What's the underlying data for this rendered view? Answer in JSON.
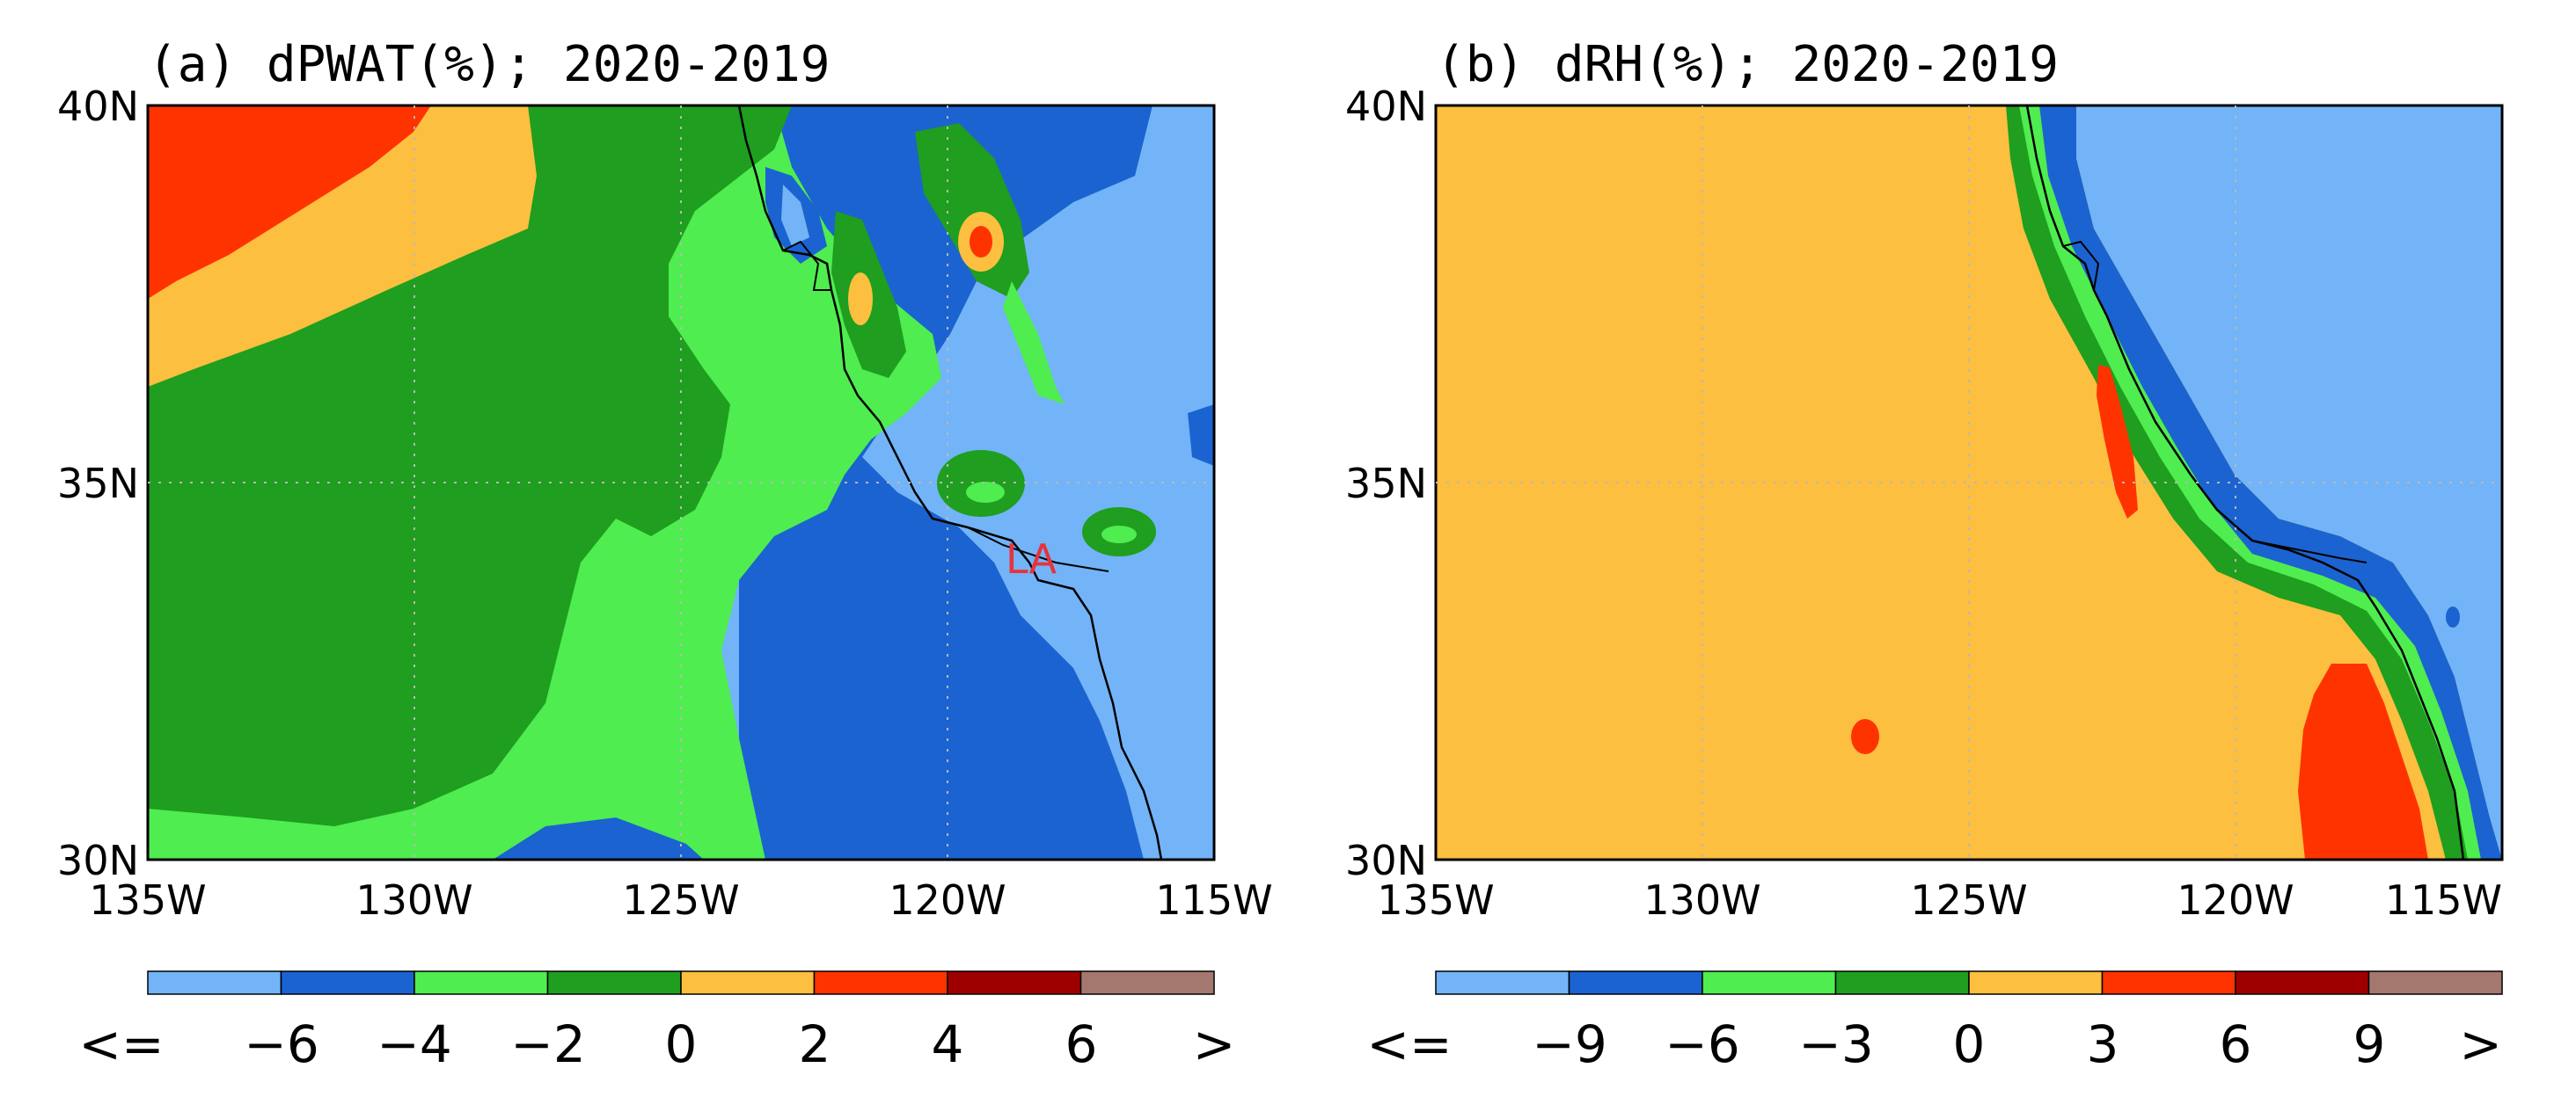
{
  "colors": {
    "lightblue": "#72b4f7",
    "blue": "#1b63d0",
    "lightgreen": "#4fed4f",
    "green": "#1f9e1f",
    "orange": "#fcbf3f",
    "red": "#ff3300",
    "darkred": "#9e0000",
    "brown": "#a5786f",
    "label_red": "#e8323c"
  },
  "panels": [
    {
      "title": "(a) dPWAT(%); 2020-2019",
      "xticks": [
        "135W",
        "130W",
        "125W",
        "120W",
        "115W"
      ],
      "yticks": [
        "30N",
        "35N",
        "40N"
      ],
      "city_label": "LA",
      "colorbar_colors": [
        "lightblue",
        "blue",
        "lightgreen",
        "green",
        "orange",
        "red",
        "darkred",
        "brown"
      ],
      "colorbar_labels": [
        "<=",
        "−6",
        "−4",
        "−2",
        "0",
        "2",
        "4",
        "6",
        ">"
      ]
    },
    {
      "title": "(b) dRH(%); 2020-2019",
      "xticks": [
        "135W",
        "130W",
        "125W",
        "120W",
        "115W"
      ],
      "yticks": [
        "30N",
        "35N",
        "40N"
      ],
      "colorbar_colors": [
        "lightblue",
        "blue",
        "lightgreen",
        "green",
        "orange",
        "red",
        "darkred",
        "brown"
      ],
      "colorbar_labels": [
        "<=",
        "−9",
        "−6",
        "−3",
        "0",
        "3",
        "6",
        "9",
        ">"
      ]
    }
  ]
}
